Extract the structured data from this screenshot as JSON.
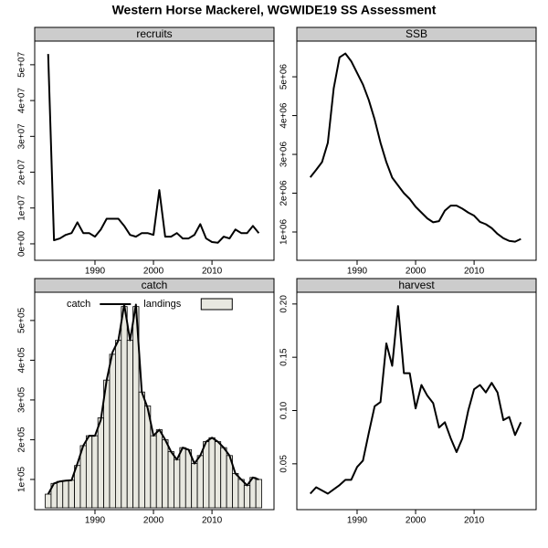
{
  "title": "Western Horse Mackerel, WGWIDE19 SS Assessment",
  "chart_data": [
    {
      "type": "line",
      "title": "recruits",
      "x": [
        1982,
        1983,
        1984,
        1985,
        1986,
        1987,
        1988,
        1989,
        1990,
        1991,
        1992,
        1993,
        1994,
        1995,
        1996,
        1997,
        1998,
        1999,
        2000,
        2001,
        2002,
        2003,
        2004,
        2005,
        2006,
        2007,
        2008,
        2009,
        2010,
        2011,
        2012,
        2013,
        2014,
        2015,
        2016,
        2017,
        2018
      ],
      "series": [
        {
          "color": "#000000",
          "values": [
            53000000,
            1000000,
            1500000,
            2500000,
            3000000,
            6000000,
            3000000,
            3000000,
            2000000,
            4000000,
            7000000,
            7000000,
            7000000,
            5000000,
            2500000,
            2000000,
            3000000,
            3000000,
            2500000,
            15000000,
            2000000,
            2000000,
            3000000,
            1500000,
            1500000,
            2500000,
            5500000,
            1500000,
            500000,
            300000,
            2000000,
            1500000,
            4000000,
            3000000,
            3000000,
            5000000,
            3000000
          ]
        }
      ],
      "xlim": [
        1979.7,
        2020.6
      ],
      "xticks": [
        1990,
        2000,
        2010
      ],
      "ylim": [
        -4600000,
        56600000
      ],
      "yticks": [
        {
          "value": 0,
          "label": "0e+00"
        },
        {
          "value": 10000000,
          "label": "1e+07"
        },
        {
          "value": 20000000,
          "label": "2e+07"
        },
        {
          "value": 30000000,
          "label": "3e+07"
        },
        {
          "value": 40000000,
          "label": "4e+07"
        },
        {
          "value": 50000000,
          "label": "5e+07"
        }
      ]
    },
    {
      "type": "line",
      "title": "SSB",
      "x": [
        1982,
        1983,
        1984,
        1985,
        1986,
        1987,
        1988,
        1989,
        1990,
        1991,
        1992,
        1993,
        1994,
        1995,
        1996,
        1997,
        1998,
        1999,
        2000,
        2001,
        2002,
        2003,
        2004,
        2005,
        2006,
        2007,
        2008,
        2009,
        2010,
        2011,
        2012,
        2013,
        2014,
        2015,
        2016,
        2017,
        2018
      ],
      "series": [
        {
          "color": "#000000",
          "values": [
            2410000,
            2600000,
            2800000,
            3300000,
            4700000,
            5500000,
            5600000,
            5400000,
            5100000,
            4800000,
            4400000,
            3900000,
            3300000,
            2800000,
            2400000,
            2200000,
            2000000,
            1850000,
            1650000,
            1500000,
            1350000,
            1250000,
            1280000,
            1550000,
            1680000,
            1680000,
            1600000,
            1500000,
            1420000,
            1260000,
            1200000,
            1100000,
            950000,
            840000,
            770000,
            750000,
            820000
          ]
        }
      ],
      "xlim": [
        1979.7,
        2020.6
      ],
      "xticks": [
        1990,
        2000,
        2010
      ],
      "ylim": [
        270000,
        5920000
      ],
      "yticks": [
        {
          "value": 1000000,
          "label": "1e+06"
        },
        {
          "value": 2000000,
          "label": "2e+06"
        },
        {
          "value": 3000000,
          "label": "3e+06"
        },
        {
          "value": 4000000,
          "label": "4e+06"
        },
        {
          "value": 5000000,
          "label": "5e+06"
        }
      ]
    },
    {
      "type": "combo",
      "title": "catch",
      "legend": "top-left",
      "x": [
        1982,
        1983,
        1984,
        1985,
        1986,
        1987,
        1988,
        1989,
        1990,
        1991,
        1992,
        1993,
        1994,
        1995,
        1996,
        1997,
        1998,
        1999,
        2000,
        2001,
        2002,
        2003,
        2004,
        2005,
        2006,
        2007,
        2008,
        2009,
        2010,
        2011,
        2012,
        2013,
        2014,
        2015,
        2016,
        2017,
        2018
      ],
      "series": [
        {
          "name": "catch",
          "type": "line",
          "color": "#000000",
          "values": [
            63000,
            90000,
            95000,
            97000,
            98000,
            140000,
            185000,
            210000,
            210000,
            250000,
            350000,
            420000,
            450000,
            540000,
            450000,
            540000,
            320000,
            280000,
            210000,
            225000,
            200000,
            170000,
            150000,
            180000,
            175000,
            140000,
            160000,
            195000,
            205000,
            195000,
            180000,
            160000,
            115000,
            100000,
            85000,
            105000,
            100000
          ]
        },
        {
          "name": "landings",
          "type": "bar",
          "color": "#e8e8e0",
          "values": [
            63000,
            90000,
            95000,
            97000,
            98000,
            135000,
            185000,
            210000,
            210000,
            255000,
            350000,
            415000,
            450000,
            535000,
            450000,
            535000,
            320000,
            285000,
            210000,
            225000,
            200000,
            170000,
            150000,
            180000,
            175000,
            140000,
            160000,
            195000,
            205000,
            195000,
            180000,
            160000,
            115000,
            100000,
            85000,
            105000,
            100000
          ]
        }
      ],
      "xlim": [
        1979.7,
        2020.6
      ],
      "xticks": [
        1990,
        2000,
        2010
      ],
      "ylim": [
        24000,
        571000
      ],
      "yticks": [
        {
          "value": 100000,
          "label": "1e+05"
        },
        {
          "value": 200000,
          "label": "2e+05"
        },
        {
          "value": 300000,
          "label": "3e+05"
        },
        {
          "value": 400000,
          "label": "4e+05"
        },
        {
          "value": 500000,
          "label": "5e+05"
        }
      ]
    },
    {
      "type": "line",
      "title": "harvest",
      "x": [
        1982,
        1983,
        1984,
        1985,
        1986,
        1987,
        1988,
        1989,
        1990,
        1991,
        1992,
        1993,
        1994,
        1995,
        1996,
        1997,
        1998,
        1999,
        2000,
        2001,
        2002,
        2003,
        2004,
        2005,
        2006,
        2007,
        2008,
        2009,
        2010,
        2011,
        2012,
        2013,
        2014,
        2015,
        2016,
        2017,
        2018
      ],
      "series": [
        {
          "color": "#000000",
          "values": [
            0.022,
            0.028,
            0.025,
            0.022,
            0.026,
            0.03,
            0.035,
            0.035,
            0.047,
            0.053,
            0.079,
            0.104,
            0.108,
            0.163,
            0.142,
            0.198,
            0.135,
            0.135,
            0.102,
            0.124,
            0.114,
            0.107,
            0.084,
            0.089,
            0.074,
            0.061,
            0.074,
            0.1,
            0.12,
            0.124,
            0.117,
            0.126,
            0.117,
            0.091,
            0.094,
            0.077,
            0.089
          ]
        }
      ],
      "xlim": [
        1979.7,
        2020.6
      ],
      "xticks": [
        1990,
        2000,
        2010
      ],
      "ylim": [
        0.007,
        0.211
      ],
      "yticks": [
        0.05,
        {
          "value": 0.1,
          "label": "0.10"
        },
        0.15,
        {
          "value": 0.2,
          "label": "0.20"
        }
      ]
    }
  ]
}
